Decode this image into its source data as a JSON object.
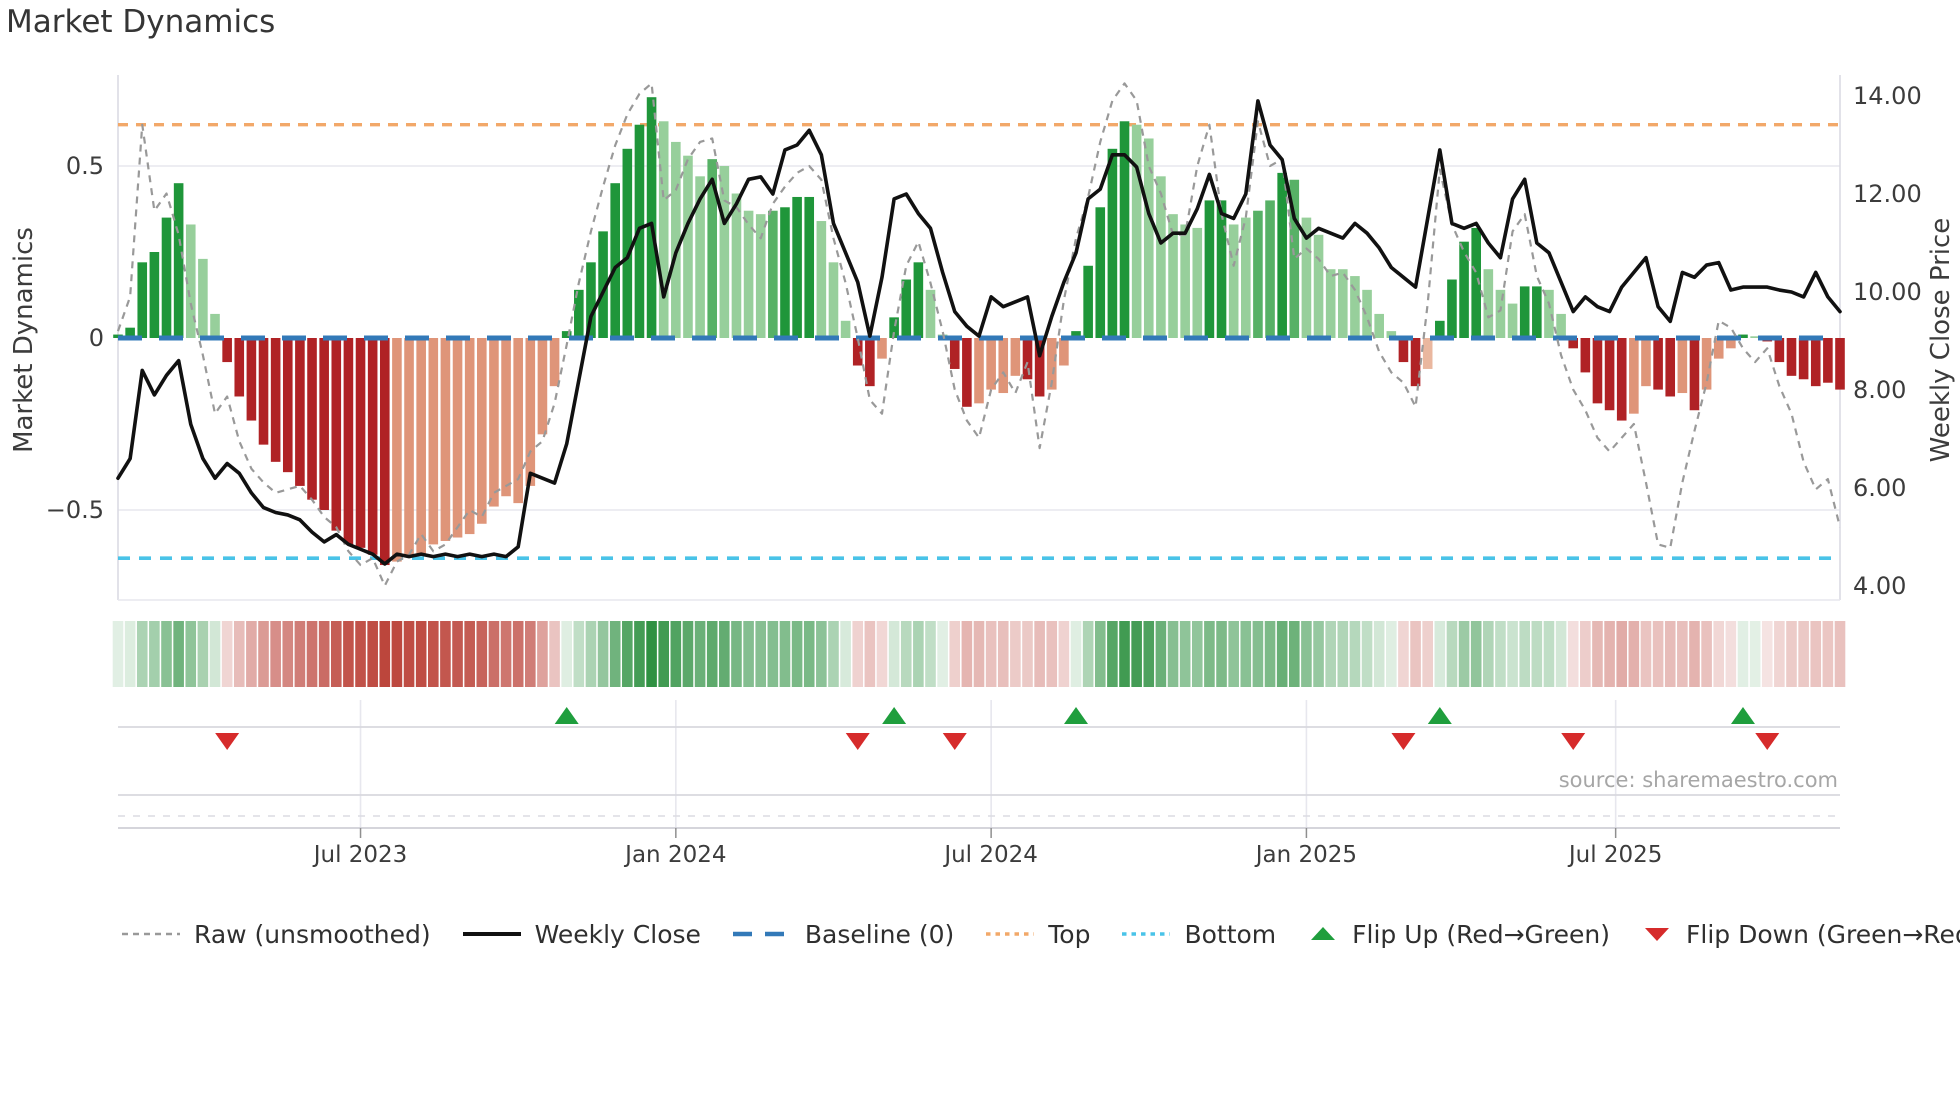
{
  "title": "Market Dynamics",
  "source": "source: sharemaestro.com",
  "axes": {
    "left": {
      "label": "Market Dynamics",
      "ticks": [
        {
          "value": 0.5,
          "label": "0.5"
        },
        {
          "value": 0.0,
          "label": "0"
        },
        {
          "value": -0.5,
          "label": "−0.5"
        }
      ]
    },
    "right": {
      "label": "Weekly Close Price",
      "ticks": [
        {
          "value": 14,
          "label": "14.00"
        },
        {
          "value": 12,
          "label": "12.00"
        },
        {
          "value": 10,
          "label": "10.00"
        },
        {
          "value": 8,
          "label": "8.00"
        },
        {
          "value": 6,
          "label": "6.00"
        },
        {
          "value": 4,
          "label": "4.00"
        }
      ]
    },
    "x": {
      "ticks": [
        {
          "week": 20,
          "label": "Jul 2023"
        },
        {
          "week": 46,
          "label": "Jan 2024"
        },
        {
          "week": 72,
          "label": "Jul 2024"
        },
        {
          "week": 98,
          "label": "Jan 2025"
        },
        {
          "week": 123.5,
          "label": "Jul 2025"
        }
      ]
    }
  },
  "legend": {
    "items": [
      {
        "label": "Raw (unsmoothed)",
        "swatch": "dash-gray"
      },
      {
        "label": "Weekly Close",
        "swatch": "solid-black"
      },
      {
        "label": "Baseline (0)",
        "swatch": "dash-blue"
      },
      {
        "label": "Top",
        "swatch": "dot-orange"
      },
      {
        "label": "Bottom",
        "swatch": "dot-cyan"
      },
      {
        "label": "Flip Up (Red→Green)",
        "swatch": "tri-up"
      },
      {
        "label": "Flip Down (Green→Red)",
        "swatch": "tri-down"
      }
    ]
  },
  "colors": {
    "bar_green_dark": "#1f963a",
    "bar_green_mid": "#57b166",
    "bar_green_light": "#97cf9b",
    "bar_red_dark": "#b02225",
    "bar_red_mid": "#df9579",
    "bar_red_light": "#eab79f",
    "weekly_close": "#111111",
    "raw_line": "#999999",
    "baseline": "#3279b8",
    "top_line": "#f2a869",
    "bottom_line": "#49c3e8",
    "flip_up": "#1f9e3d",
    "flip_down": "#d62b2b",
    "grid": "#e7e7ee",
    "spine": "#d9d9e2",
    "heat_green": [
      47,
      145,
      66
    ],
    "heat_red": [
      185,
      60,
      50
    ]
  },
  "chart_data": {
    "type": "bar",
    "x_unit": "week-index",
    "n_weeks": 143,
    "left_ylim": [
      -0.76,
      0.765
    ],
    "right_ylim": [
      3.7,
      14.45
    ],
    "reference_lines": {
      "baseline": 0,
      "top": 0.62,
      "bottom": -0.64
    },
    "flip_up_weeks": [
      37,
      64,
      79,
      109,
      134
    ],
    "flip_down_weeks": [
      9,
      61,
      69,
      106,
      120,
      136
    ],
    "series": [
      {
        "name": "Market Dynamics (smoothed bars)",
        "type": "bar",
        "axis": "left",
        "values": [
          0.01,
          0.03,
          0.22,
          0.25,
          0.35,
          0.45,
          0.33,
          0.23,
          0.07,
          -0.07,
          -0.17,
          -0.24,
          -0.31,
          -0.36,
          -0.39,
          -0.43,
          -0.47,
          -0.5,
          -0.56,
          -0.6,
          -0.61,
          -0.63,
          -0.66,
          -0.65,
          -0.63,
          -0.63,
          -0.6,
          -0.59,
          -0.58,
          -0.57,
          -0.54,
          -0.49,
          -0.46,
          -0.48,
          -0.43,
          -0.28,
          -0.14,
          0.02,
          0.14,
          0.22,
          0.31,
          0.45,
          0.55,
          0.62,
          0.7,
          0.63,
          0.57,
          0.53,
          0.47,
          0.52,
          0.5,
          0.42,
          0.37,
          0.36,
          0.37,
          0.38,
          0.41,
          0.41,
          0.34,
          0.22,
          0.05,
          -0.08,
          -0.14,
          -0.06,
          0.06,
          0.17,
          0.22,
          0.14,
          0.01,
          -0.09,
          -0.2,
          -0.19,
          -0.15,
          -0.16,
          -0.11,
          -0.12,
          -0.17,
          -0.15,
          -0.08,
          0.02,
          0.21,
          0.38,
          0.55,
          0.63,
          0.62,
          0.58,
          0.47,
          0.36,
          0.33,
          0.32,
          0.4,
          0.4,
          0.33,
          0.35,
          0.37,
          0.4,
          0.48,
          0.46,
          0.35,
          0.3,
          0.2,
          0.2,
          0.18,
          0.14,
          0.07,
          0.02,
          -0.07,
          -0.14,
          -0.09,
          0.05,
          0.17,
          0.28,
          0.32,
          0.2,
          0.14,
          0.1,
          0.15,
          0.15,
          0.14,
          0.07,
          -0.03,
          -0.1,
          -0.19,
          -0.21,
          -0.24,
          -0.22,
          -0.14,
          -0.15,
          -0.17,
          -0.16,
          -0.21,
          -0.15,
          -0.06,
          -0.03,
          0.01,
          0.005,
          -0.01,
          -0.07,
          -0.11,
          -0.12,
          -0.14,
          -0.13,
          -0.15
        ],
        "shades": [
          "dg",
          "dg",
          "dg",
          "dg",
          "dg",
          "dg",
          "lg",
          "lg",
          "lg",
          "dr",
          "dr",
          "dr",
          "dr",
          "dr",
          "dr",
          "dr",
          "dr",
          "dr",
          "dr",
          "dr",
          "dr",
          "dr",
          "dr",
          "mr",
          "mr",
          "mr",
          "mr",
          "mr",
          "mr",
          "mr",
          "mr",
          "mr",
          "mr",
          "mr",
          "mr",
          "mr",
          "mr",
          "dg",
          "dg",
          "dg",
          "dg",
          "dg",
          "dg",
          "dg",
          "dg",
          "lg",
          "lg",
          "lg",
          "lg",
          "mg",
          "lg",
          "lg",
          "lg",
          "lg",
          "mg",
          "dg",
          "dg",
          "dg",
          "lg",
          "lg",
          "lg",
          "dr",
          "dr",
          "mr",
          "dg",
          "dg",
          "dg",
          "lg",
          "lg",
          "dr",
          "dr",
          "mr",
          "mr",
          "mr",
          "mr",
          "dr",
          "dr",
          "mr",
          "mr",
          "dg",
          "dg",
          "dg",
          "dg",
          "dg",
          "lg",
          "lg",
          "lg",
          "lg",
          "lg",
          "lg",
          "dg",
          "dg",
          "lg",
          "lg",
          "mg",
          "mg",
          "dg",
          "mg",
          "lg",
          "lg",
          "lg",
          "lg",
          "lg",
          "lg",
          "lg",
          "lg",
          "dr",
          "dr",
          "lr",
          "dg",
          "dg",
          "dg",
          "dg",
          "lg",
          "lg",
          "lg",
          "dg",
          "dg",
          "lg",
          "lg",
          "dr",
          "dr",
          "dr",
          "dr",
          "dr",
          "mr",
          "mr",
          "dr",
          "dr",
          "mr",
          "dr",
          "mr",
          "mr",
          "mr",
          "dg",
          "lg",
          "dr",
          "dr",
          "dr",
          "dr",
          "dr",
          "dr",
          "dr"
        ]
      },
      {
        "name": "Raw (unsmoothed)",
        "type": "line",
        "style": "dashed",
        "axis": "left",
        "values": [
          0.02,
          0.12,
          0.62,
          0.37,
          0.42,
          0.3,
          0.1,
          -0.05,
          -0.22,
          -0.17,
          -0.3,
          -0.38,
          -0.42,
          -0.45,
          -0.44,
          -0.43,
          -0.47,
          -0.52,
          -0.55,
          -0.62,
          -0.66,
          -0.64,
          -0.72,
          -0.65,
          -0.63,
          -0.57,
          -0.62,
          -0.6,
          -0.55,
          -0.5,
          -0.52,
          -0.45,
          -0.43,
          -0.41,
          -0.33,
          -0.3,
          -0.19,
          -0.02,
          0.16,
          0.31,
          0.44,
          0.56,
          0.65,
          0.71,
          0.74,
          0.4,
          0.43,
          0.52,
          0.57,
          0.58,
          0.4,
          0.38,
          0.33,
          0.29,
          0.39,
          0.44,
          0.48,
          0.5,
          0.46,
          0.29,
          0.16,
          0.0,
          -0.18,
          -0.22,
          0.02,
          0.21,
          0.28,
          0.16,
          0.02,
          -0.15,
          -0.24,
          -0.29,
          -0.15,
          -0.1,
          -0.16,
          -0.07,
          -0.32,
          -0.13,
          0.11,
          0.29,
          0.41,
          0.57,
          0.69,
          0.74,
          0.69,
          0.5,
          0.42,
          0.3,
          0.3,
          0.5,
          0.62,
          0.36,
          0.21,
          0.35,
          0.63,
          0.5,
          0.52,
          0.23,
          0.26,
          0.23,
          0.18,
          0.19,
          0.14,
          0.06,
          -0.04,
          -0.1,
          -0.13,
          -0.2,
          0.1,
          0.49,
          0.33,
          0.25,
          0.19,
          0.06,
          0.08,
          0.31,
          0.36,
          0.18,
          0.1,
          -0.05,
          -0.15,
          -0.21,
          -0.29,
          -0.33,
          -0.29,
          -0.25,
          -0.42,
          -0.6,
          -0.61,
          -0.42,
          -0.27,
          -0.13,
          0.05,
          0.03,
          -0.03,
          -0.07,
          -0.03,
          -0.14,
          -0.22,
          -0.36,
          -0.44,
          -0.41,
          -0.55
        ]
      },
      {
        "name": "Weekly Close",
        "type": "line",
        "style": "solid",
        "axis": "right",
        "values": [
          6.2,
          6.6,
          8.4,
          7.9,
          8.3,
          8.6,
          7.3,
          6.6,
          6.2,
          6.5,
          6.3,
          5.9,
          5.6,
          5.5,
          5.45,
          5.35,
          5.1,
          4.9,
          5.05,
          4.85,
          4.75,
          4.65,
          4.45,
          4.65,
          4.6,
          4.65,
          4.6,
          4.65,
          4.6,
          4.65,
          4.6,
          4.65,
          4.6,
          4.8,
          6.3,
          6.2,
          6.1,
          6.9,
          8.2,
          9.5,
          10.0,
          10.5,
          10.7,
          11.3,
          11.4,
          9.9,
          10.8,
          11.4,
          11.9,
          12.3,
          11.4,
          11.8,
          12.3,
          12.35,
          12.0,
          12.9,
          13.0,
          13.3,
          12.8,
          11.4,
          10.8,
          10.2,
          9.1,
          10.3,
          11.9,
          12.0,
          11.6,
          11.3,
          10.4,
          9.6,
          9.3,
          9.1,
          9.9,
          9.7,
          9.8,
          9.9,
          8.7,
          9.5,
          10.2,
          10.8,
          11.9,
          12.1,
          12.8,
          12.8,
          12.55,
          11.6,
          11.0,
          11.2,
          11.2,
          11.7,
          12.4,
          11.6,
          11.5,
          12.0,
          13.9,
          13.0,
          12.7,
          11.5,
          11.1,
          11.3,
          11.2,
          11.1,
          11.4,
          11.2,
          10.9,
          10.5,
          10.3,
          10.1,
          11.5,
          12.9,
          11.4,
          11.3,
          11.4,
          11.0,
          10.7,
          11.9,
          12.3,
          11.0,
          10.8,
          10.2,
          9.6,
          9.9,
          9.7,
          9.6,
          10.1,
          10.4,
          10.7,
          9.7,
          9.4,
          10.4,
          10.3,
          10.55,
          10.6,
          10.04,
          10.1,
          10.1,
          10.1,
          10.04,
          10.0,
          9.9,
          10.4,
          9.9,
          9.6
        ]
      }
    ],
    "heatmap": {
      "note": "bottom strip: one cell per week, diverging red/green colormap, intensity proportional to |bar value|"
    }
  }
}
